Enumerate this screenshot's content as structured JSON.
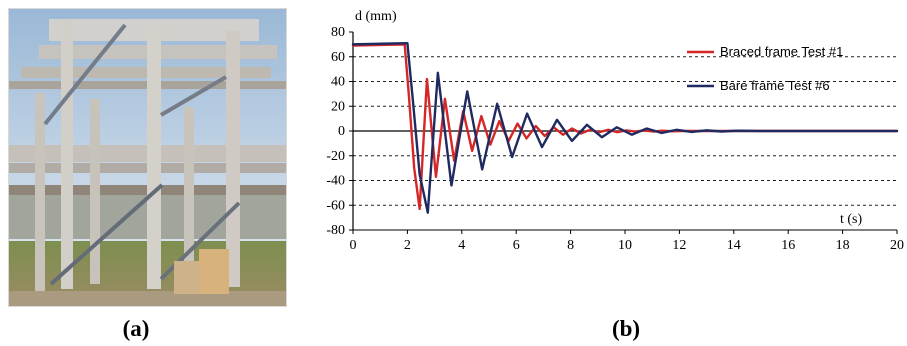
{
  "figure": {
    "panels": [
      {
        "id": "a",
        "caption": "(a)"
      },
      {
        "id": "b",
        "caption": "(b)"
      }
    ],
    "photo": {
      "icon": "building-frame-photo"
    }
  },
  "chart_data": {
    "type": "line",
    "title": "",
    "xlabel": "t (s)",
    "ylabel": "d (mm)",
    "xlim": [
      0,
      20
    ],
    "ylim": [
      -80,
      80
    ],
    "x_ticks": [
      0,
      2,
      4,
      6,
      8,
      10,
      12,
      14,
      16,
      18,
      20
    ],
    "y_ticks": [
      80,
      60,
      40,
      20,
      0,
      -20,
      -40,
      -60,
      -80
    ],
    "grid": "horizontal-dashed",
    "legend_position": "top-right",
    "series": [
      {
        "name": "Braced frame Test #1",
        "color": "#d62728",
        "x": [
          0,
          1.9,
          2.05,
          2.25,
          2.45,
          2.72,
          3.05,
          3.38,
          3.72,
          4.05,
          4.38,
          4.72,
          5.05,
          5.38,
          5.72,
          6.05,
          6.38,
          6.72,
          7.05,
          7.38,
          7.72,
          8.05,
          8.38,
          8.72,
          9.05,
          9.38,
          9.72,
          10.05,
          10.38,
          10.72,
          11.05,
          11.38,
          11.72,
          12.05,
          12.7,
          13.5,
          20
        ],
        "y": [
          69,
          70,
          30,
          -30,
          -63,
          42,
          -37,
          26,
          -24,
          16,
          -16,
          12,
          -11,
          8,
          -8,
          6,
          -6,
          4,
          -4,
          3,
          -3,
          2,
          -2,
          1,
          -1,
          1,
          -1,
          0.5,
          -0.5,
          0.4,
          -0.4,
          0.2,
          -0.2,
          0,
          0,
          0,
          0
        ]
      },
      {
        "name": "Bare frame Test #6",
        "color": "#1f2a60",
        "x": [
          0,
          2.0,
          2.2,
          2.45,
          2.75,
          3.12,
          3.62,
          4.2,
          4.75,
          5.3,
          5.85,
          6.4,
          6.95,
          7.5,
          8.05,
          8.6,
          9.15,
          9.7,
          10.25,
          10.8,
          11.35,
          11.9,
          12.45,
          13.0,
          13.55,
          14.1,
          15.0,
          20
        ],
        "y": [
          70,
          71,
          25,
          -35,
          -66,
          47,
          -44,
          32,
          -31,
          22,
          -21,
          14,
          -13,
          9,
          -8,
          5,
          -5,
          3,
          -3,
          2,
          -1.6,
          1,
          -0.8,
          0.5,
          -0.4,
          0.2,
          0,
          0
        ]
      }
    ]
  }
}
